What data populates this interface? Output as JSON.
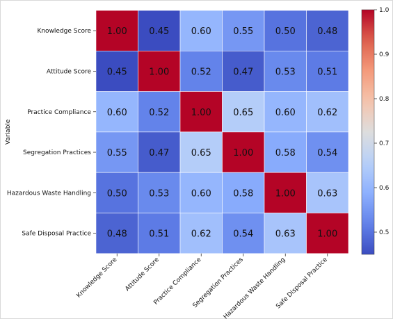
{
  "chart_data": {
    "type": "heatmap",
    "title": "",
    "xlabel": "",
    "ylabel": "Variable",
    "x_categories": [
      "Knowledge Score",
      "Attitude Score",
      "Practice Compliance",
      "Segregation Practices",
      "Hazardous Waste Handling",
      "Safe Disposal Practice"
    ],
    "y_categories": [
      "Knowledge Score",
      "Attitude Score",
      "Practice Compliance",
      "Segregation Practices",
      "Hazardous Waste Handling",
      "Safe Disposal Practice"
    ],
    "values": [
      [
        1.0,
        0.45,
        0.6,
        0.55,
        0.5,
        0.48
      ],
      [
        0.45,
        1.0,
        0.52,
        0.47,
        0.53,
        0.51
      ],
      [
        0.6,
        0.52,
        1.0,
        0.65,
        0.6,
        0.62
      ],
      [
        0.55,
        0.47,
        0.65,
        1.0,
        0.58,
        0.54
      ],
      [
        0.5,
        0.53,
        0.6,
        0.58,
        1.0,
        0.63
      ],
      [
        0.48,
        0.51,
        0.62,
        0.54,
        0.63,
        1.0
      ]
    ],
    "cell_labels": [
      [
        "1.00",
        "0.45",
        "0.60",
        "0.55",
        "0.50",
        "0.48"
      ],
      [
        "0.45",
        "1.00",
        "0.52",
        "0.47",
        "0.53",
        "0.51"
      ],
      [
        "0.60",
        "0.52",
        "1.00",
        "0.65",
        "0.60",
        "0.62"
      ],
      [
        "0.55",
        "0.47",
        "0.65",
        "1.00",
        "0.58",
        "0.54"
      ],
      [
        "0.50",
        "0.53",
        "0.60",
        "0.58",
        "1.00",
        "0.63"
      ],
      [
        "0.48",
        "0.51",
        "0.62",
        "0.54",
        "0.63",
        "1.00"
      ]
    ],
    "colormap": "coolwarm",
    "vmin": 0.45,
    "vmax": 1.0,
    "colorbar": {
      "ticks": [
        0.5,
        0.6,
        0.7,
        0.8,
        0.9,
        1.0
      ],
      "tick_labels": [
        "0.5",
        "0.6",
        "0.7",
        "0.8",
        "0.9",
        "1.0"
      ],
      "placement": "right"
    },
    "grid": false,
    "legend": "none"
  }
}
